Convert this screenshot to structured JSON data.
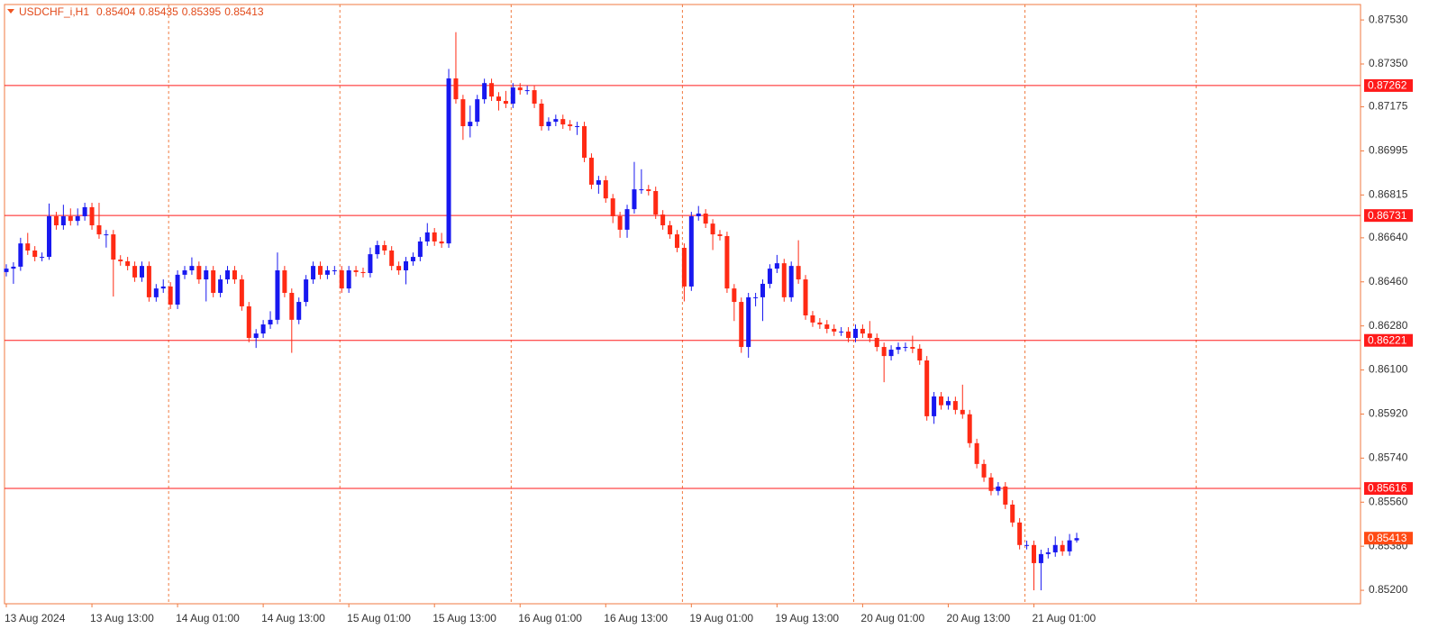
{
  "chart_data": {
    "type": "candlestick",
    "symbol": "USDCHF_i,H1",
    "categories": [
      "13 Aug 2024",
      null,
      null,
      null,
      null,
      null,
      null,
      null,
      null,
      null,
      null,
      null,
      "13 Aug 13:00",
      null,
      null,
      null,
      null,
      null,
      null,
      null,
      null,
      null,
      null,
      null,
      "14 Aug 01:00",
      null,
      null,
      null,
      null,
      null,
      null,
      null,
      null,
      null,
      null,
      null,
      "14 Aug 13:00",
      null,
      null,
      null,
      null,
      null,
      null,
      null,
      null,
      null,
      null,
      null,
      "15 Aug 01:00",
      null,
      null,
      null,
      null,
      null,
      null,
      null,
      null,
      null,
      null,
      null,
      "15 Aug 13:00",
      null,
      null,
      null,
      null,
      null,
      null,
      null,
      null,
      null,
      null,
      null,
      "16 Aug 01:00",
      null,
      null,
      null,
      null,
      null,
      null,
      null,
      null,
      null,
      null,
      null,
      "16 Aug 13:00",
      null,
      null,
      null,
      null,
      null,
      null,
      null,
      null,
      null,
      null,
      null,
      "19 Aug 01:00",
      null,
      null,
      null,
      null,
      null,
      null,
      null,
      null,
      null,
      null,
      null,
      "19 Aug 13:00",
      null,
      null,
      null,
      null,
      null,
      null,
      null,
      null,
      null,
      null,
      null,
      "20 Aug 01:00",
      null,
      null,
      null,
      null,
      null,
      null,
      null,
      null,
      null,
      null,
      null,
      "20 Aug 13:00",
      null,
      null,
      null,
      null,
      null,
      null,
      null,
      null,
      null,
      null,
      null,
      "21 Aug 01:00",
      null,
      null,
      null,
      null,
      null,
      null
    ],
    "open": [
      0.865,
      0.86514,
      0.86522,
      0.86617,
      0.86588,
      0.86562,
      0.86562,
      0.86728,
      0.86691,
      0.86728,
      0.86709,
      0.86728,
      0.86765,
      0.86691,
      0.86654,
      0.86654,
      0.86551,
      0.86544,
      0.86525,
      0.86478,
      0.86525,
      0.86397,
      0.86433,
      0.86441,
      0.86367,
      0.86489,
      0.86507,
      0.86525,
      0.8647,
      0.86507,
      0.86415,
      0.8647,
      0.86507,
      0.8647,
      0.8636,
      0.86231,
      0.86249,
      0.86286,
      0.86305,
      0.86507,
      0.86415,
      0.86305,
      0.86378,
      0.8647,
      0.86525,
      0.86489,
      0.86507,
      0.86507,
      0.86433,
      0.86507,
      0.865,
      0.86496,
      0.86573,
      0.8661,
      0.86588,
      0.86525,
      0.86507,
      0.86544,
      0.86562,
      0.86625,
      0.86662,
      0.86625,
      0.86617,
      0.87291,
      0.87206,
      0.87096,
      0.87114,
      0.87206,
      0.87272,
      0.87217,
      0.87199,
      0.87188,
      0.87254,
      0.87243,
      0.87243,
      0.87188,
      0.87096,
      0.87114,
      0.87125,
      0.87103,
      0.87096,
      0.87096,
      0.86967,
      0.86857,
      0.86875,
      0.86801,
      0.86728,
      0.86673,
      0.86757,
      0.86838,
      0.86838,
      0.86831,
      0.86735,
      0.86691,
      0.86654,
      0.86599,
      0.86441,
      0.86728,
      0.86739,
      0.86698,
      0.86654,
      0.86647,
      0.86433,
      0.86378,
      0.86194,
      0.86397,
      0.86397,
      0.86452,
      0.86514,
      0.86536,
      0.86397,
      0.86525,
      0.8647,
      0.86323,
      0.86294,
      0.86286,
      0.86268,
      0.86257,
      0.86257,
      0.86231,
      0.86268,
      0.86249,
      0.86231,
      0.86194,
      0.86157,
      0.86183,
      0.86194,
      0.86194,
      0.86187,
      0.86139,
      0.85911,
      0.85992,
      0.85956,
      0.85973,
      0.85937,
      0.85919,
      0.85801,
      0.85716,
      0.85661,
      0.85606,
      0.85624,
      0.8555,
      0.85477,
      0.85385,
      0.85385,
      0.85311,
      0.85348,
      0.85355,
      0.85385,
      0.85359,
      0.85404
    ],
    "high": [
      0.86532,
      0.8654,
      0.8664,
      0.8666,
      0.86606,
      0.8658,
      0.8678,
      0.86746,
      0.86775,
      0.8676,
      0.8676,
      0.86783,
      0.86783,
      0.86783,
      0.86672,
      0.86672,
      0.86569,
      0.86562,
      0.86543,
      0.86543,
      0.86543,
      0.86451,
      0.8647,
      0.86459,
      0.86507,
      0.86525,
      0.8656,
      0.86543,
      0.86525,
      0.86525,
      0.86488,
      0.86525,
      0.86525,
      0.86488,
      0.86378,
      0.86267,
      0.86304,
      0.8634,
      0.8658,
      0.86525,
      0.86433,
      0.86396,
      0.86488,
      0.86543,
      0.86543,
      0.86525,
      0.86525,
      0.86525,
      0.86525,
      0.86525,
      0.86518,
      0.866,
      0.86628,
      0.86628,
      0.86606,
      0.86543,
      0.86562,
      0.8658,
      0.86643,
      0.867,
      0.8668,
      0.8666,
      0.8733,
      0.8748,
      0.87224,
      0.8718,
      0.87224,
      0.8729,
      0.8729,
      0.87235,
      0.8724,
      0.87272,
      0.87272,
      0.87261,
      0.87261,
      0.87206,
      0.87132,
      0.87143,
      0.87143,
      0.87121,
      0.87114,
      0.87114,
      0.86985,
      0.86893,
      0.86893,
      0.86819,
      0.86746,
      0.86775,
      0.8695,
      0.8692,
      0.86856,
      0.86849,
      0.86753,
      0.86709,
      0.86672,
      0.86617,
      0.86746,
      0.8677,
      0.86757,
      0.86716,
      0.86672,
      0.86665,
      0.86451,
      0.86396,
      0.86415,
      0.86415,
      0.8647,
      0.86532,
      0.8657,
      0.86554,
      0.86543,
      0.8663,
      0.86488,
      0.86341,
      0.86312,
      0.86304,
      0.86286,
      0.86275,
      0.86275,
      0.86286,
      0.86286,
      0.863,
      0.86249,
      0.86212,
      0.86201,
      0.86212,
      0.86212,
      0.8624,
      0.86205,
      0.86157,
      0.8601,
      0.8601,
      0.85991,
      0.85991,
      0.8604,
      0.85937,
      0.85819,
      0.85734,
      0.85679,
      0.85642,
      0.85642,
      0.85568,
      0.85495,
      0.85403,
      0.85403,
      0.85366,
      0.85373,
      0.8542,
      0.85403,
      0.8543,
      0.85435
    ],
    "low": [
      0.86482,
      0.86452,
      0.86505,
      0.8657,
      0.86544,
      0.86544,
      0.8655,
      0.86673,
      0.86673,
      0.8669,
      0.8669,
      0.8671,
      0.86673,
      0.86636,
      0.866,
      0.864,
      0.86526,
      0.86507,
      0.8646,
      0.8646,
      0.86379,
      0.86379,
      0.86415,
      0.86349,
      0.86349,
      0.86471,
      0.86489,
      0.86452,
      0.8638,
      0.86397,
      0.86397,
      0.86452,
      0.86452,
      0.86342,
      0.86213,
      0.8619,
      0.86231,
      0.86268,
      0.86287,
      0.86397,
      0.8617,
      0.86287,
      0.8636,
      0.86452,
      0.86471,
      0.86471,
      0.86489,
      0.86415,
      0.86415,
      0.86482,
      0.86478,
      0.86478,
      0.86555,
      0.8657,
      0.86507,
      0.86489,
      0.8645,
      0.86526,
      0.86544,
      0.86607,
      0.86607,
      0.86599,
      0.86599,
      0.87188,
      0.8704,
      0.8705,
      0.87096,
      0.87188,
      0.87199,
      0.8716,
      0.8717,
      0.8717,
      0.87225,
      0.87225,
      0.8717,
      0.87078,
      0.87078,
      0.87096,
      0.87085,
      0.87078,
      0.8706,
      0.86949,
      0.86839,
      0.8682,
      0.86783,
      0.867,
      0.8664,
      0.8664,
      0.86739,
      0.8682,
      0.86813,
      0.86717,
      0.86673,
      0.86636,
      0.86581,
      0.8638,
      0.86423,
      0.8671,
      0.8668,
      0.8659,
      0.86629,
      0.86415,
      0.863,
      0.8617,
      0.8615,
      0.8636,
      0.863,
      0.86434,
      0.86496,
      0.86379,
      0.86379,
      0.86452,
      0.86305,
      0.86276,
      0.86268,
      0.8625,
      0.86239,
      0.86239,
      0.86213,
      0.86213,
      0.86231,
      0.86213,
      0.86176,
      0.8605,
      0.86139,
      0.86165,
      0.86176,
      0.86169,
      0.86121,
      0.85893,
      0.8588,
      0.85938,
      0.85938,
      0.85919,
      0.85901,
      0.85783,
      0.85698,
      0.85643,
      0.85588,
      0.85588,
      0.85532,
      0.85459,
      0.85367,
      0.85367,
      0.852,
      0.852,
      0.8533,
      0.85337,
      0.85341,
      0.85341,
      0.85395
    ],
    "close": [
      0.86514,
      0.86522,
      0.86617,
      0.86588,
      0.86562,
      0.86562,
      0.86728,
      0.86691,
      0.86728,
      0.86709,
      0.86728,
      0.86765,
      0.86691,
      0.86654,
      0.86654,
      0.86551,
      0.86544,
      0.86525,
      0.86478,
      0.86525,
      0.86397,
      0.86433,
      0.86441,
      0.86367,
      0.86489,
      0.86507,
      0.86525,
      0.8647,
      0.86507,
      0.86415,
      0.8647,
      0.86507,
      0.8647,
      0.8636,
      0.86231,
      0.86249,
      0.86286,
      0.86305,
      0.86507,
      0.86415,
      0.86305,
      0.86378,
      0.8647,
      0.86525,
      0.86489,
      0.86507,
      0.86507,
      0.86433,
      0.86507,
      0.865,
      0.86496,
      0.86573,
      0.8661,
      0.86588,
      0.86525,
      0.86507,
      0.86544,
      0.86562,
      0.86625,
      0.86662,
      0.86625,
      0.86617,
      0.87291,
      0.87206,
      0.87096,
      0.87114,
      0.87206,
      0.87272,
      0.87217,
      0.87199,
      0.87188,
      0.87254,
      0.87243,
      0.87243,
      0.87188,
      0.87096,
      0.87114,
      0.87125,
      0.87103,
      0.87096,
      0.87096,
      0.86967,
      0.86857,
      0.86875,
      0.86801,
      0.86728,
      0.86673,
      0.86757,
      0.86838,
      0.86838,
      0.86831,
      0.86735,
      0.86691,
      0.86654,
      0.86599,
      0.86441,
      0.86728,
      0.86739,
      0.86698,
      0.86654,
      0.86647,
      0.86433,
      0.86378,
      0.86194,
      0.86397,
      0.86397,
      0.86452,
      0.86514,
      0.86536,
      0.86397,
      0.86525,
      0.8647,
      0.86323,
      0.86294,
      0.86286,
      0.86268,
      0.86257,
      0.86257,
      0.86231,
      0.86268,
      0.86249,
      0.86231,
      0.86194,
      0.86157,
      0.86183,
      0.86194,
      0.86194,
      0.86187,
      0.86139,
      0.85911,
      0.85992,
      0.85956,
      0.85973,
      0.85937,
      0.85919,
      0.85801,
      0.85716,
      0.85661,
      0.85606,
      0.85624,
      0.8555,
      0.85477,
      0.85385,
      0.85385,
      0.85311,
      0.85348,
      0.85355,
      0.85385,
      0.85359,
      0.85404,
      0.85413
    ],
    "up_color": "#1818f0",
    "down_color": "#ff2a14",
    "ylim": [
      0.85145,
      0.87593
    ],
    "yticks": [
      {
        "value": 0.8753,
        "label": "0.87530"
      },
      {
        "value": 0.8735,
        "label": "0.87350"
      },
      0.87175,
      0.86995,
      0.86815,
      {
        "value": 0.8664,
        "label": "0.86640"
      },
      {
        "value": 0.8646,
        "label": "0.86460"
      },
      {
        "value": 0.8628,
        "label": "0.86280"
      },
      {
        "value": 0.861,
        "label": "0.86100"
      },
      {
        "value": 0.8592,
        "label": "0.85920"
      },
      {
        "value": 0.8574,
        "label": "0.85740"
      },
      {
        "value": 0.8556,
        "label": "0.85560"
      },
      {
        "value": 0.8538,
        "label": "0.85380"
      },
      {
        "value": 0.852,
        "label": "0.85200"
      }
    ],
    "levels": [
      0.87262,
      0.86731,
      0.86221,
      0.85616
    ],
    "level_color": "#ff1a1a",
    "price_line_color": "#ff4a14"
  }
}
